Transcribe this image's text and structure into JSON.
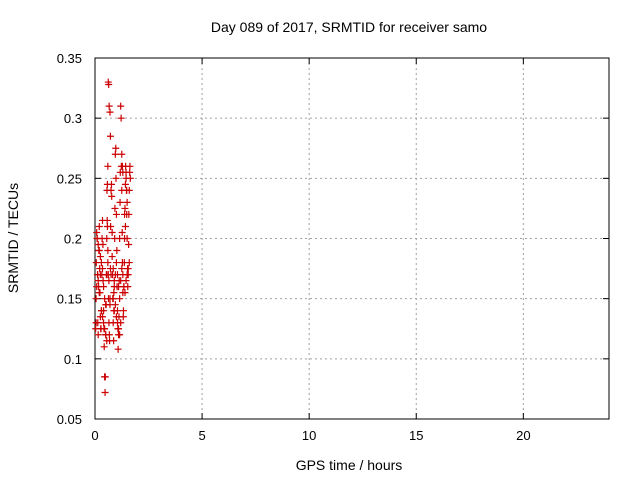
{
  "chart_data": {
    "type": "scatter",
    "title": "Day 089 of 2017, SRMTID for receiver samo",
    "xlabel": "GPS time / hours",
    "ylabel": "SRMTID / TECUs",
    "xlim": [
      0,
      24
    ],
    "ylim": [
      0.05,
      0.35
    ],
    "x_ticks": [
      0,
      5,
      10,
      15,
      20
    ],
    "y_ticks": [
      0.05,
      0.1,
      0.15,
      0.2,
      0.25,
      0.3,
      0.35
    ],
    "x_tick_labels": [
      "0",
      "5",
      "10",
      "15",
      "20"
    ],
    "y_tick_labels": [
      "0.05",
      "0.1",
      "0.15",
      "0.2",
      "0.25",
      "0.3",
      "0.35"
    ],
    "grid": true,
    "marker": "plus",
    "color": "#cc0000",
    "x": [
      0.03,
      0.05,
      0.06,
      0.08,
      0.1,
      0.12,
      0.13,
      0.15,
      0.17,
      0.18,
      0.2,
      0.22,
      0.23,
      0.25,
      0.27,
      0.28,
      0.3,
      0.32,
      0.33,
      0.35,
      0.37,
      0.38,
      0.4,
      0.42,
      0.43,
      0.45,
      0.47,
      0.48,
      0.5,
      0.52,
      0.53,
      0.55,
      0.57,
      0.58,
      0.6,
      0.62,
      0.63,
      0.65,
      0.67,
      0.68,
      0.7,
      0.72,
      0.73,
      0.75,
      0.77,
      0.78,
      0.8,
      0.82,
      0.83,
      0.85,
      0.87,
      0.88,
      0.9,
      0.92,
      0.93,
      0.95,
      0.97,
      0.98,
      1.0,
      1.02,
      1.03,
      1.05,
      1.07,
      1.08,
      1.1,
      1.12,
      1.13,
      1.15,
      1.17,
      1.18,
      1.2,
      1.22,
      1.23,
      1.25,
      1.27,
      1.28,
      1.3,
      1.32,
      1.33,
      1.35,
      1.37,
      1.38,
      1.4,
      1.42,
      1.43,
      1.45,
      1.47,
      1.48,
      1.5,
      1.52,
      1.53,
      1.55,
      1.57,
      1.58,
      1.6,
      1.62,
      1.63,
      1.65,
      0.05,
      0.08,
      0.12,
      0.15,
      0.2,
      0.25,
      0.3,
      0.35,
      0.4,
      0.45,
      0.5,
      0.55,
      0.6,
      0.65,
      0.7,
      0.75,
      0.8,
      0.85,
      0.9,
      0.95,
      1.0,
      1.05,
      1.1,
      1.15,
      1.2,
      1.25,
      1.3,
      1.35,
      1.4,
      1.45,
      1.5,
      1.55,
      1.6,
      0.62,
      0.64,
      0.66,
      0.7,
      0.72,
      0.6,
      0.58,
      0.56,
      1.25,
      1.28,
      1.3,
      1.45,
      1.48,
      1.5,
      1.38,
      1.42,
      0.1,
      0.15,
      0.2,
      0.25,
      0.3,
      0.35,
      0.4,
      0.45,
      0.5,
      0.55,
      0.85,
      0.88,
      0.9,
      0.95,
      1.0,
      1.05,
      1.1,
      1.15,
      1.2
    ],
    "y": [
      0.125,
      0.13,
      0.18,
      0.205,
      0.2,
      0.17,
      0.13,
      0.12,
      0.16,
      0.19,
      0.21,
      0.175,
      0.155,
      0.135,
      0.125,
      0.125,
      0.14,
      0.17,
      0.2,
      0.215,
      0.195,
      0.165,
      0.14,
      0.125,
      0.11,
      0.085,
      0.072,
      0.085,
      0.12,
      0.145,
      0.17,
      0.2,
      0.215,
      0.21,
      0.19,
      0.17,
      0.15,
      0.13,
      0.12,
      0.115,
      0.145,
      0.175,
      0.21,
      0.24,
      0.245,
      0.235,
      0.205,
      0.17,
      0.15,
      0.13,
      0.115,
      0.14,
      0.165,
      0.2,
      0.225,
      0.27,
      0.275,
      0.25,
      0.22,
      0.19,
      0.16,
      0.14,
      0.125,
      0.108,
      0.12,
      0.135,
      0.165,
      0.2,
      0.23,
      0.255,
      0.31,
      0.3,
      0.26,
      0.24,
      0.205,
      0.18,
      0.155,
      0.135,
      0.14,
      0.16,
      0.18,
      0.2,
      0.225,
      0.245,
      0.26,
      0.255,
      0.24,
      0.22,
      0.2,
      0.175,
      0.16,
      0.17,
      0.195,
      0.22,
      0.24,
      0.255,
      0.26,
      0.25,
      0.15,
      0.16,
      0.17,
      0.165,
      0.155,
      0.17,
      0.18,
      0.175,
      0.16,
      0.15,
      0.145,
      0.17,
      0.18,
      0.165,
      0.15,
      0.17,
      0.185,
      0.175,
      0.16,
      0.17,
      0.18,
      0.17,
      0.16,
      0.15,
      0.165,
      0.175,
      0.17,
      0.16,
      0.155,
      0.165,
      0.17,
      0.175,
      0.18,
      0.33,
      0.328,
      0.31,
      0.305,
      0.285,
      0.26,
      0.245,
      0.24,
      0.27,
      0.26,
      0.255,
      0.25,
      0.24,
      0.23,
      0.22,
      0.21,
      0.2,
      0.195,
      0.19,
      0.185,
      0.14,
      0.135,
      0.13,
      0.125,
      0.12,
      0.115,
      0.15,
      0.155,
      0.14,
      0.145,
      0.135,
      0.13,
      0.125,
      0.12,
      0.13
    ]
  }
}
